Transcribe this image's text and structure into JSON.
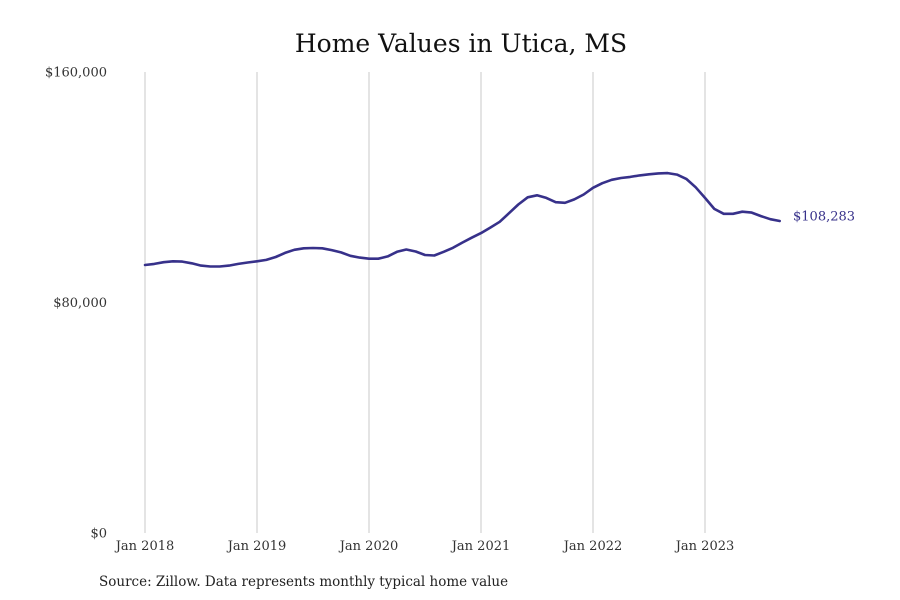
{
  "chart_data": {
    "type": "line",
    "title": "Home Values in Utica, MS",
    "xlabel": "",
    "ylabel": "",
    "ylim": [
      0,
      160000
    ],
    "y_ticks": [
      {
        "value": 0,
        "label": "$0"
      },
      {
        "value": 80000,
        "label": "$80,000"
      },
      {
        "value": 160000,
        "label": "$160,000"
      }
    ],
    "x_ticks": [
      {
        "value": "2018-01",
        "label": "Jan 2018"
      },
      {
        "value": "2019-01",
        "label": "Jan 2019"
      },
      {
        "value": "2020-01",
        "label": "Jan 2020"
      },
      {
        "value": "2021-01",
        "label": "Jan 2021"
      },
      {
        "value": "2022-01",
        "label": "Jan 2022"
      },
      {
        "value": "2023-01",
        "label": "Jan 2023"
      }
    ],
    "grid": {
      "vertical": true,
      "horizontal": false
    },
    "legend": "none",
    "colors": {
      "line": "#37318a",
      "grid": "#c8c8c8",
      "end_label": "#37318a"
    },
    "series": [
      {
        "x": [
          "2018-01",
          "2018-02",
          "2018-03",
          "2018-04",
          "2018-05",
          "2018-06",
          "2018-07",
          "2018-08",
          "2018-09",
          "2018-10",
          "2018-11",
          "2018-12",
          "2019-01",
          "2019-02",
          "2019-03",
          "2019-04",
          "2019-05",
          "2019-06",
          "2019-07",
          "2019-08",
          "2019-09",
          "2019-10",
          "2019-11",
          "2019-12",
          "2020-01",
          "2020-02",
          "2020-03",
          "2020-04",
          "2020-05",
          "2020-06",
          "2020-07",
          "2020-08",
          "2020-09",
          "2020-10",
          "2020-11",
          "2020-12",
          "2021-01",
          "2021-02",
          "2021-03",
          "2021-04",
          "2021-05",
          "2021-06",
          "2021-07",
          "2021-08",
          "2021-09",
          "2021-10",
          "2021-11",
          "2021-12",
          "2022-01",
          "2022-02",
          "2022-03",
          "2022-04",
          "2022-05",
          "2022-06",
          "2022-07",
          "2022-08",
          "2022-09",
          "2022-10",
          "2022-11",
          "2022-12",
          "2023-01",
          "2023-02",
          "2023-03",
          "2023-04",
          "2023-05",
          "2023-06",
          "2023-07",
          "2023-08",
          "2023-09"
        ],
        "values": [
          93000,
          93400,
          94000,
          94300,
          94200,
          93600,
          92800,
          92500,
          92500,
          92800,
          93400,
          93900,
          94300,
          94800,
          95800,
          97200,
          98300,
          98800,
          98900,
          98800,
          98200,
          97400,
          96200,
          95600,
          95200,
          95200,
          96000,
          97600,
          98400,
          97700,
          96500,
          96300,
          97600,
          99000,
          100800,
          102500,
          104100,
          106000,
          108000,
          111000,
          114000,
          116500,
          117200,
          116300,
          114800,
          114600,
          115800,
          117500,
          119800,
          121400,
          122600,
          123200,
          123600,
          124100,
          124500,
          124800,
          124900,
          124400,
          122900,
          120000,
          116300,
          112500,
          110800,
          110800,
          111500,
          111200,
          110000,
          108900,
          108283
        ]
      }
    ],
    "end_label": "$108,283"
  },
  "source": "Source: Zillow. Data represents monthly typical home value"
}
